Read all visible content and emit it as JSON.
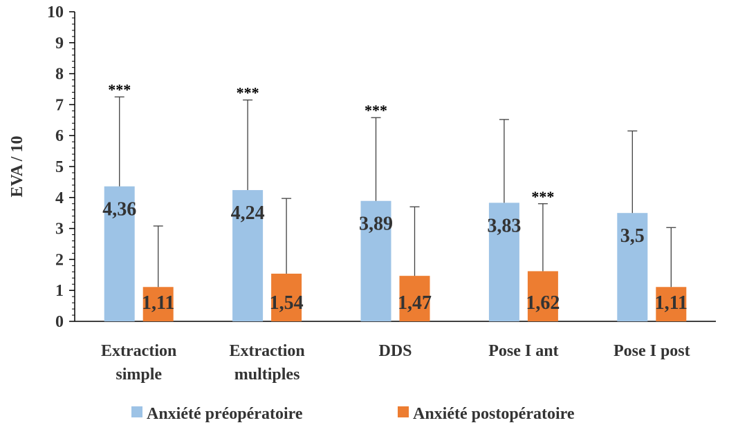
{
  "chart_data": {
    "type": "bar",
    "categories": [
      [
        "Extraction",
        "simple"
      ],
      [
        "Extraction",
        "multiples"
      ],
      [
        "DDS"
      ],
      [
        "Pose I ant"
      ],
      [
        "Pose I post"
      ]
    ],
    "ylabel": "EVA / 10",
    "ylim": [
      0,
      10
    ],
    "y_ticks": [
      "0",
      "1",
      "2",
      "3",
      "4",
      "5",
      "6",
      "7",
      "8",
      "9",
      "10"
    ],
    "grid": false,
    "legend_position": "bottom",
    "series": [
      {
        "name": "Anxiété préopératoire",
        "color": "#9DC3E6",
        "values": [
          4.36,
          4.24,
          3.89,
          3.83,
          3.5
        ],
        "labels": [
          "4,36",
          "4,24",
          "3,89",
          "3,83",
          "3,5"
        ],
        "error_top": [
          7.25,
          7.15,
          6.58,
          6.52,
          6.15
        ],
        "significance": [
          "***",
          "***",
          "***",
          "",
          ""
        ]
      },
      {
        "name": "Anxiété postopératoire",
        "color": "#ED7D31",
        "values": [
          1.11,
          1.54,
          1.47,
          1.62,
          1.11
        ],
        "labels": [
          "1,11",
          "1,54",
          "1,47",
          "1,62",
          "1,11"
        ],
        "error_top": [
          3.08,
          3.97,
          3.7,
          3.8,
          3.03
        ],
        "significance": [
          "",
          "",
          "",
          "***",
          ""
        ]
      }
    ]
  }
}
